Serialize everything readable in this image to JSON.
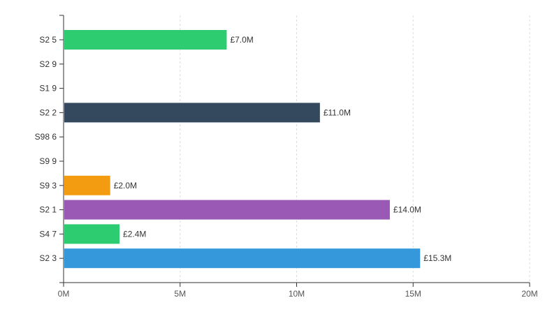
{
  "chart_data": {
    "type": "bar",
    "orientation": "horizontal",
    "title": "",
    "xlabel": "",
    "ylabel": "",
    "xlim": [
      0,
      20
    ],
    "x_ticks": [
      0,
      5,
      10,
      15,
      20
    ],
    "x_tick_labels": [
      "0M",
      "5M",
      "10M",
      "15M",
      "20M"
    ],
    "grid": true,
    "categories": [
      "S2 5",
      "S2 9",
      "S1 9",
      "S2 2",
      "S98 6",
      "S9 9",
      "S9 3",
      "S2 1",
      "S4 7",
      "S2 3"
    ],
    "values": [
      7.0,
      0,
      0,
      11.0,
      0,
      0,
      2.0,
      14.0,
      2.4,
      15.3
    ],
    "value_labels": [
      "£7.0M",
      "",
      "",
      "£11.0M",
      "",
      "",
      "£2.0M",
      "£14.0M",
      "£2.4M",
      "£15.3M"
    ],
    "colors": [
      "#2ecc71",
      "#2ecc71",
      "#2ecc71",
      "#34495e",
      "#34495e",
      "#34495e",
      "#f39c12",
      "#9b59b6",
      "#2ecc71",
      "#3498db"
    ]
  }
}
